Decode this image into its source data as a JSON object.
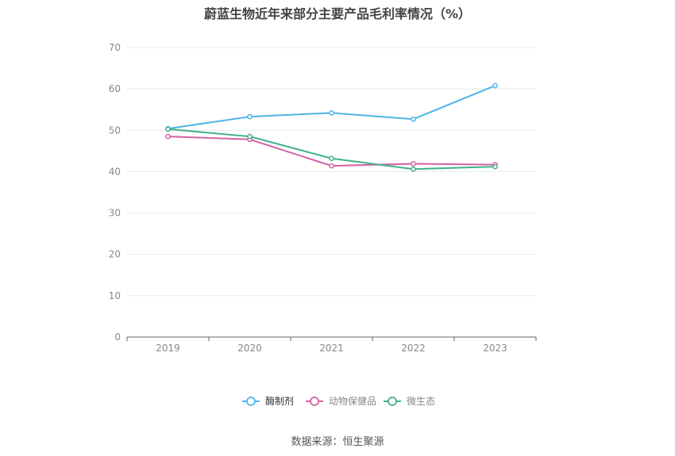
{
  "chart_data": {
    "type": "line",
    "title": "蔚蓝生物近年来部分主要产品毛利率情况（%）",
    "categories": [
      "2019",
      "2020",
      "2021",
      "2022",
      "2023"
    ],
    "ylim": [
      0,
      70
    ],
    "yticks": [
      "0",
      "10",
      "20",
      "30",
      "40",
      "50",
      "60",
      "70"
    ],
    "grid": true,
    "legend_position": "bottom",
    "series": [
      {
        "name": "酶制剂",
        "color": "#4db5e8",
        "values": [
          50.4,
          53.3,
          54.2,
          52.7,
          60.8
        ]
      },
      {
        "name": "动物保健品",
        "color": "#d462a6",
        "values": [
          48.5,
          47.8,
          41.4,
          41.9,
          41.7
        ]
      },
      {
        "name": "微生态",
        "color": "#43b08f",
        "values": [
          50.3,
          48.5,
          43.2,
          40.6,
          41.2
        ]
      }
    ],
    "source": "数据来源：恒生聚源"
  }
}
